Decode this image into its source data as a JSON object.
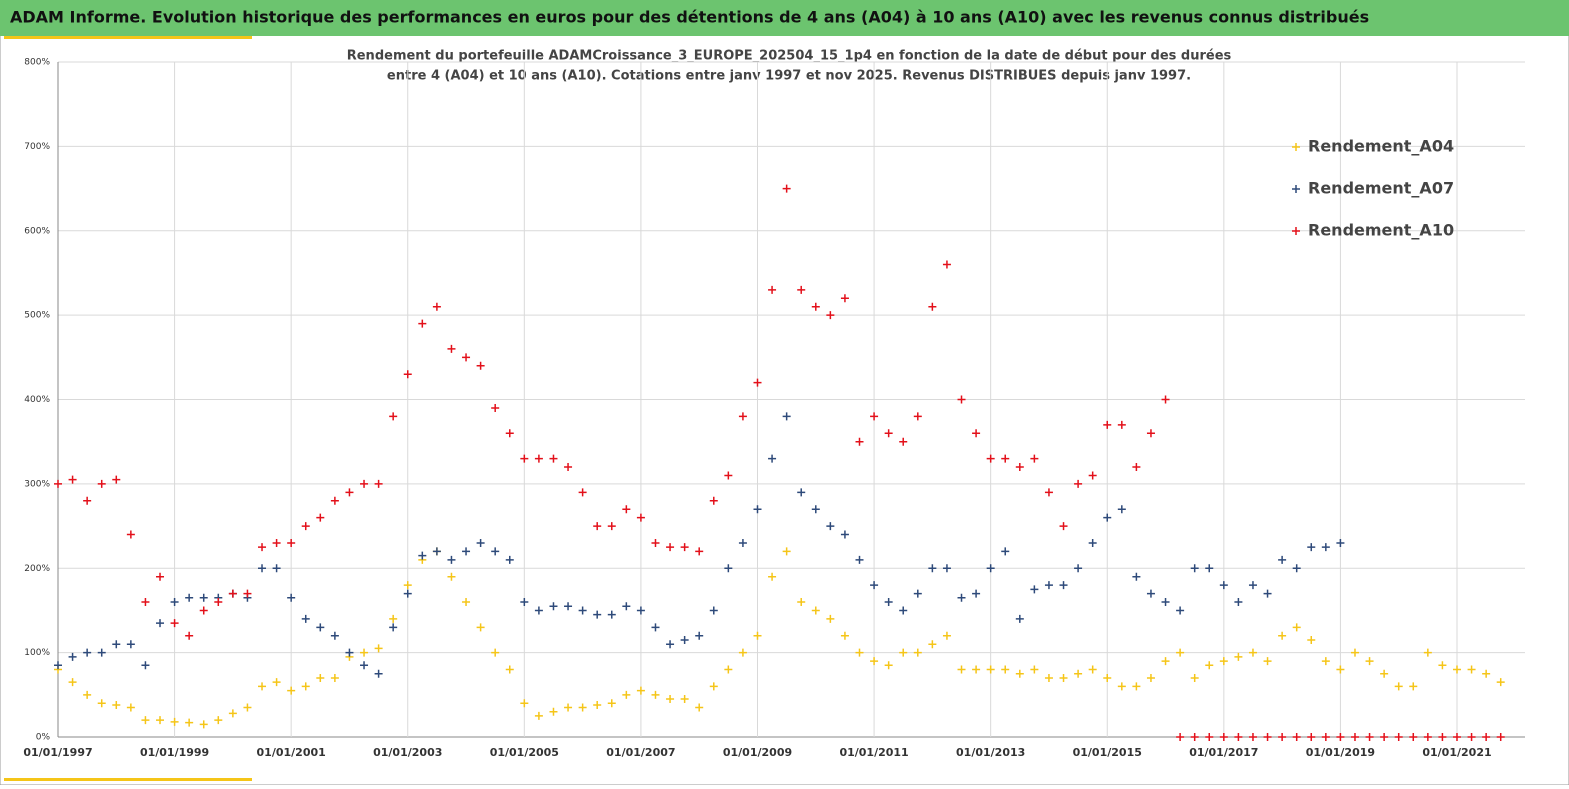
{
  "page_header": "ADAM Informe. Evolution historique des performances en euros pour des détentions de 4 ans (A04) à 10 ans (A10) avec les revenus connus distribués",
  "chart_data": {
    "type": "scatter",
    "title": [
      "Rendement du portefeuille ADAMCroissance_3_EUROPE_202504_15_1p4  en fonction de la date de début pour des durées",
      "entre 4 (A04) et 10 ans (A10). Cotations entre janv 1997 et nov 2025. Revenus DISTRIBUES depuis janv 1997."
    ],
    "x": [
      "01/01/1997",
      "01/04/1997",
      "01/07/1997",
      "01/10/1997",
      "01/01/1998",
      "01/04/1998",
      "01/07/1998",
      "01/10/1998",
      "01/01/1999",
      "01/04/1999",
      "01/07/1999",
      "01/10/1999",
      "01/01/2000",
      "01/04/2000",
      "01/07/2000",
      "01/10/2000",
      "01/01/2001",
      "01/04/2001",
      "01/07/2001",
      "01/10/2001",
      "01/01/2002",
      "01/04/2002",
      "01/07/2002",
      "01/10/2002",
      "01/01/2003",
      "01/04/2003",
      "01/07/2003",
      "01/10/2003",
      "01/01/2004",
      "01/04/2004",
      "01/07/2004",
      "01/10/2004",
      "01/01/2005",
      "01/04/2005",
      "01/07/2005",
      "01/10/2005",
      "01/01/2006",
      "01/04/2006",
      "01/07/2006",
      "01/10/2006",
      "01/01/2007",
      "01/04/2007",
      "01/07/2007",
      "01/10/2007",
      "01/01/2008",
      "01/04/2008",
      "01/07/2008",
      "01/10/2008",
      "01/01/2009",
      "01/04/2009",
      "01/07/2009",
      "01/10/2009",
      "01/01/2010",
      "01/04/2010",
      "01/07/2010",
      "01/10/2010",
      "01/01/2011",
      "01/04/2011",
      "01/07/2011",
      "01/10/2011",
      "01/01/2012",
      "01/04/2012",
      "01/07/2012",
      "01/10/2012",
      "01/01/2013",
      "01/04/2013",
      "01/07/2013",
      "01/10/2013",
      "01/01/2014",
      "01/04/2014",
      "01/07/2014",
      "01/10/2014",
      "01/01/2015",
      "01/04/2015",
      "01/07/2015",
      "01/10/2015",
      "01/01/2016",
      "01/04/2016",
      "01/07/2016",
      "01/10/2016",
      "01/01/2017",
      "01/04/2017",
      "01/07/2017",
      "01/10/2017",
      "01/01/2018",
      "01/04/2018",
      "01/07/2018",
      "01/10/2018",
      "01/01/2019",
      "01/04/2019",
      "01/07/2019",
      "01/10/2019",
      "01/01/2020",
      "01/04/2020",
      "01/07/2020",
      "01/10/2020",
      "01/01/2021",
      "01/04/2021",
      "01/07/2021",
      "01/10/2021"
    ],
    "series": [
      {
        "name": "Rendement_A04",
        "color": "#f5c518",
        "values": [
          80,
          65,
          50,
          40,
          38,
          35,
          20,
          20,
          18,
          17,
          15,
          20,
          28,
          35,
          60,
          65,
          55,
          60,
          70,
          70,
          95,
          100,
          105,
          140,
          180,
          210,
          220,
          190,
          160,
          130,
          100,
          80,
          40,
          25,
          30,
          35,
          35,
          38,
          40,
          50,
          55,
          50,
          45,
          45,
          35,
          60,
          80,
          100,
          120,
          190,
          220,
          160,
          150,
          140,
          120,
          100,
          90,
          85,
          100,
          100,
          110,
          120,
          80,
          80,
          80,
          80,
          75,
          80,
          70,
          70,
          75,
          80,
          70,
          60,
          60,
          70,
          90,
          100,
          70,
          85,
          90,
          95,
          100,
          90,
          120,
          130,
          115,
          90,
          80,
          100,
          90,
          75,
          60,
          60,
          100,
          85,
          80,
          80,
          75,
          65
        ]
      },
      {
        "name": "Rendement_A07",
        "color": "#2e4a7a",
        "values": [
          85,
          95,
          100,
          100,
          110,
          110,
          85,
          135,
          160,
          165,
          165,
          165,
          170,
          165,
          200,
          200,
          165,
          140,
          130,
          120,
          100,
          85,
          75,
          130,
          170,
          215,
          220,
          210,
          220,
          230,
          220,
          210,
          160,
          150,
          155,
          155,
          150,
          145,
          145,
          155,
          150,
          130,
          110,
          115,
          120,
          150,
          200,
          230,
          270,
          330,
          380,
          290,
          270,
          250,
          240,
          210,
          180,
          160,
          150,
          170,
          200,
          200,
          165,
          170,
          200,
          220,
          140,
          175,
          180,
          180,
          200,
          230,
          260,
          270,
          190,
          170,
          160,
          150,
          200,
          200,
          180,
          160,
          180,
          170,
          210,
          200,
          225,
          225,
          230,
          null,
          null,
          null,
          null,
          null,
          null,
          null,
          null,
          null,
          null,
          null
        ]
      },
      {
        "name": "Rendement_A10",
        "color": "#e3101a",
        "values": [
          300,
          305,
          280,
          300,
          305,
          240,
          160,
          190,
          135,
          120,
          150,
          160,
          170,
          170,
          225,
          230,
          230,
          250,
          260,
          280,
          290,
          300,
          300,
          380,
          430,
          490,
          510,
          460,
          450,
          440,
          390,
          360,
          330,
          330,
          330,
          320,
          290,
          250,
          250,
          270,
          260,
          230,
          225,
          225,
          220,
          280,
          310,
          380,
          420,
          530,
          650,
          530,
          510,
          500,
          520,
          350,
          380,
          360,
          350,
          380,
          510,
          560,
          400,
          360,
          330,
          330,
          320,
          330,
          290,
          250,
          300,
          310,
          370,
          370,
          320,
          360,
          400,
          0,
          0,
          0,
          0,
          0,
          0,
          0,
          0,
          0,
          0,
          0,
          0,
          0,
          0,
          0,
          0,
          0,
          0,
          0,
          0,
          0,
          0,
          0
        ]
      }
    ],
    "xlim": [
      "01/01/1997",
      "01/03/2022"
    ],
    "xticks": [
      "01/01/1997",
      "01/01/1999",
      "01/01/2001",
      "01/01/2003",
      "01/01/2005",
      "01/01/2007",
      "01/01/2009",
      "01/01/2011",
      "01/01/2013",
      "01/01/2015",
      "01/01/2017",
      "01/01/2019",
      "01/01/2021"
    ],
    "ylim": [
      0,
      800
    ],
    "yticks": [
      {
        "value": 0,
        "label": "0%"
      },
      {
        "value": 100,
        "label": "100%"
      },
      {
        "value": 200,
        "label": "200%"
      },
      {
        "value": 300,
        "label": "300%"
      },
      {
        "value": 400,
        "label": "400%"
      },
      {
        "value": 500,
        "label": "500%"
      },
      {
        "value": 600,
        "label": "600%"
      },
      {
        "value": 700,
        "label": "700%"
      },
      {
        "value": 800,
        "label": "800%"
      }
    ],
    "grid": true,
    "legend": "top-right"
  }
}
